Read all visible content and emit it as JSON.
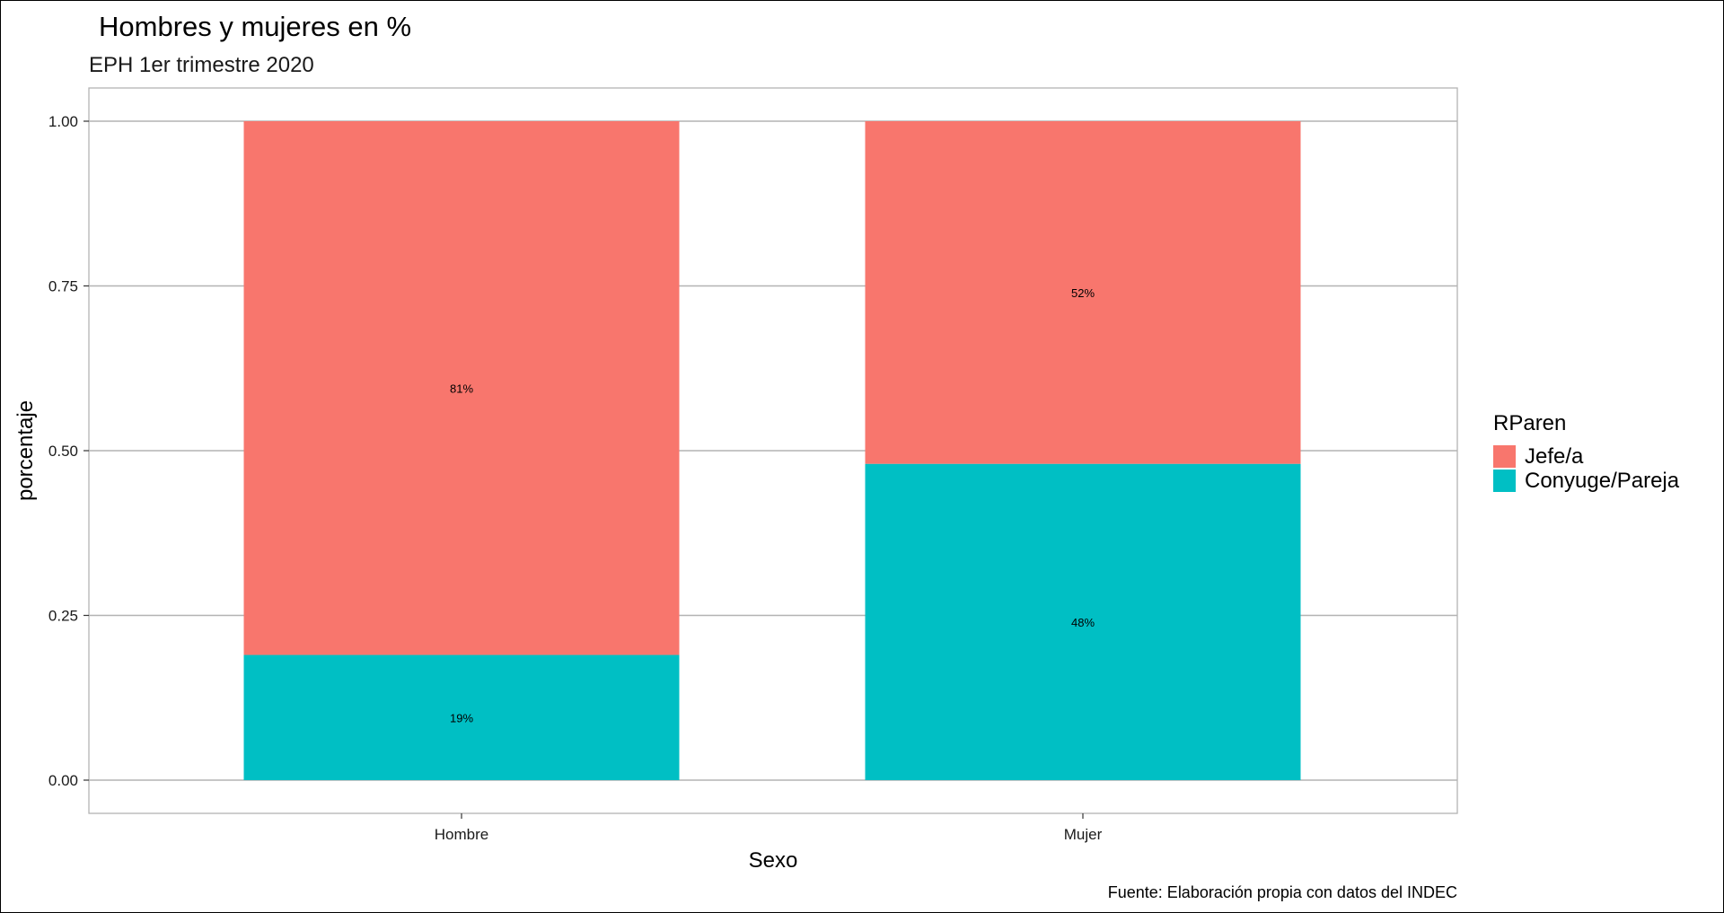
{
  "chart_data": {
    "type": "bar",
    "stacked": true,
    "title": "Hombres y mujeres en %",
    "subtitle": "EPH 1er trimestre 2020",
    "xlabel": "Sexo",
    "ylabel": "porcentaje",
    "caption": "Fuente: Elaboración propia con datos del INDEC",
    "categories": [
      "Hombre",
      "Mujer"
    ],
    "ylim": [
      0,
      1
    ],
    "yticks": [
      0,
      0.25,
      0.5,
      0.75,
      1
    ],
    "ytick_labels": [
      "0.00",
      "0.25",
      "0.50",
      "0.75",
      "1.00"
    ],
    "grid": true,
    "legend": {
      "title": "RParen",
      "position": "right"
    },
    "series": [
      {
        "name": "Jefe/a",
        "color": "#F8766D",
        "values": [
          0.81,
          0.52
        ],
        "labels": [
          "81%",
          "52%"
        ]
      },
      {
        "name": "Conyuge/Pareja",
        "color": "#00BFC4",
        "values": [
          0.19,
          0.48
        ],
        "labels": [
          "19%",
          "48%"
        ]
      }
    ]
  }
}
